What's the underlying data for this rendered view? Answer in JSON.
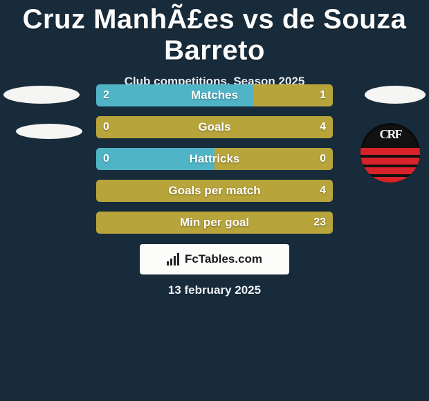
{
  "background_color": "#182b3a",
  "title": "Cruz ManhÃ£es vs de Souza Barreto",
  "subtitle": "Club competitions, Season 2025",
  "date": "13 february 2025",
  "footer_brand": "FcTables.com",
  "colors": {
    "left": "#4fb5c6",
    "right": "#b7a43a",
    "text": "#ffffff"
  },
  "club_logo": {
    "name": "flamengo-style-logo",
    "bg": "#111111",
    "stripe": "#d8232a",
    "monogram": "CRF"
  },
  "rows": [
    {
      "label": "Matches",
      "left": "2",
      "right": "1",
      "left_pct": 66.7
    },
    {
      "label": "Goals",
      "left": "0",
      "right": "4",
      "left_pct": 0
    },
    {
      "label": "Hattricks",
      "left": "0",
      "right": "0",
      "left_pct": 50
    },
    {
      "label": "Goals per match",
      "left": "",
      "right": "4",
      "left_pct": 0
    },
    {
      "label": "Min per goal",
      "left": "",
      "right": "23",
      "left_pct": 0
    }
  ]
}
